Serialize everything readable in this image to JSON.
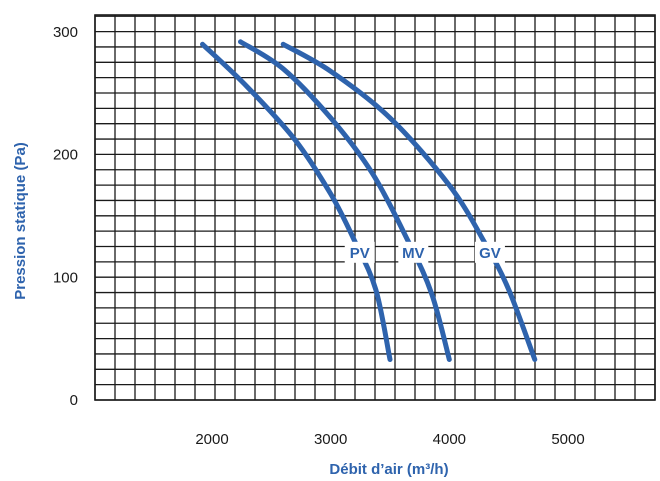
{
  "chart_data": {
    "type": "line",
    "title": "",
    "xlabel": "Débit d’air (m³/h)",
    "ylabel": "Pression statique (Pa)",
    "xlim": [
      1100,
      5800
    ],
    "ylim": [
      0,
      310
    ],
    "x_ticks": [
      2000,
      3000,
      4000,
      5000
    ],
    "y_ticks": [
      0,
      100,
      200,
      300
    ],
    "grid": true,
    "line_color": "#2e63ad",
    "series": [
      {
        "name": "PV",
        "points": [
          [
            1920,
            290
          ],
          [
            2300,
            255
          ],
          [
            2700,
            212
          ],
          [
            3000,
            168
          ],
          [
            3200,
            130
          ],
          [
            3380,
            90
          ],
          [
            3500,
            33
          ]
        ]
      },
      {
        "name": "MV",
        "points": [
          [
            2240,
            292
          ],
          [
            2600,
            270
          ],
          [
            3000,
            230
          ],
          [
            3350,
            185
          ],
          [
            3650,
            130
          ],
          [
            3850,
            87
          ],
          [
            4000,
            33
          ]
        ]
      },
      {
        "name": "GV",
        "points": [
          [
            2600,
            290
          ],
          [
            3000,
            268
          ],
          [
            3500,
            230
          ],
          [
            4000,
            175
          ],
          [
            4300,
            128
          ],
          [
            4500,
            90
          ],
          [
            4720,
            33
          ]
        ]
      }
    ]
  }
}
